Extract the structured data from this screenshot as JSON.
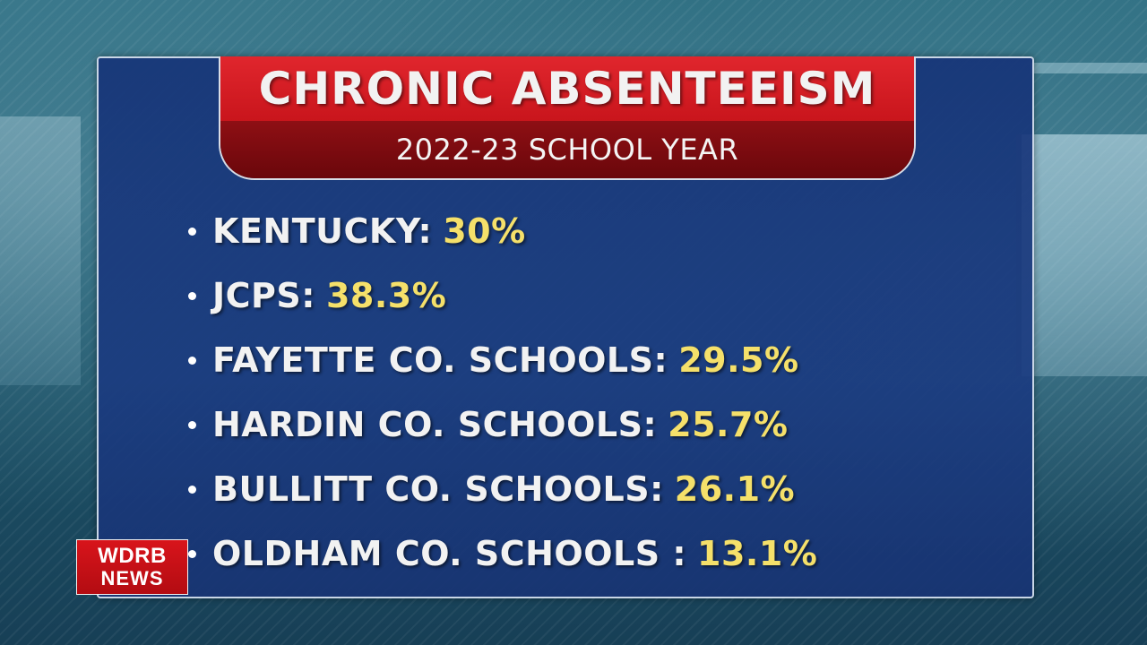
{
  "header": {
    "title": "CHRONIC ABSENTEEISM",
    "subtitle": "2022-23 SCHOOL YEAR"
  },
  "items": [
    {
      "label": "KENTUCKY:",
      "value": "30%"
    },
    {
      "label": "JCPS:",
      "value": "38.3%"
    },
    {
      "label": "FAYETTE CO. SCHOOLS:",
      "value": "29.5%"
    },
    {
      "label": "HARDIN CO. SCHOOLS:",
      "value": "25.7%"
    },
    {
      "label": "BULLITT CO. SCHOOLS:",
      "value": "26.1%"
    },
    {
      "label": "OLDHAM CO. SCHOOLS :",
      "value": "13.1%"
    }
  ],
  "logo": {
    "line1": "WDRB",
    "line2": "NEWS"
  },
  "colors": {
    "header_red": "#d41c23",
    "header_dark_red": "#7a0a0e",
    "panel_blue": "#1a3a80",
    "value_yellow": "#f5e06a"
  }
}
